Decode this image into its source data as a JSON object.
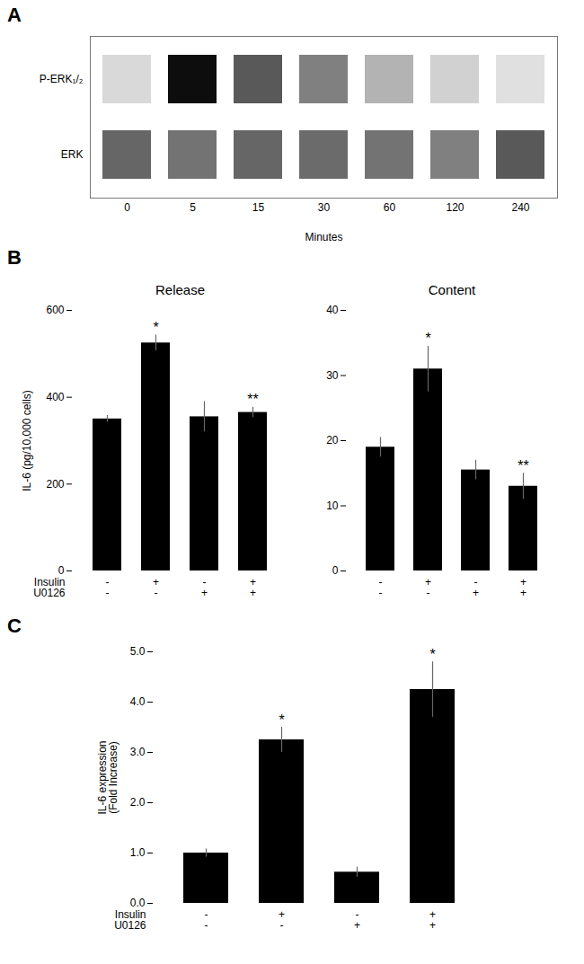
{
  "chart_data": [
    {
      "type": "heatmap",
      "panel_label": "A",
      "categories": [
        "0",
        "5",
        "15",
        "30",
        "60",
        "120",
        "240"
      ],
      "rows": [
        "P-ERK₁/₂",
        "ERK"
      ],
      "cells": [
        [
          0.15,
          0.95,
          0.65,
          0.5,
          0.3,
          0.18,
          0.12
        ],
        [
          0.6,
          0.55,
          0.6,
          0.58,
          0.55,
          0.5,
          0.65
        ]
      ],
      "zlim": [
        0,
        1
      ],
      "xlabel": "Minutes"
    },
    {
      "type": "bar",
      "panel_label": "B",
      "title": "Release",
      "ylabel": "IL-6 (pg/10,000 cells)",
      "categories": [
        null,
        null,
        null,
        null
      ],
      "values": [
        350,
        525,
        355,
        365
      ],
      "errors": [
        8,
        18,
        35,
        12
      ],
      "sig": [
        null,
        "*",
        null,
        "**"
      ],
      "conditions": [
        {
          "name": "Insulin",
          "labels": [
            "-",
            "+",
            "-",
            "+"
          ]
        },
        {
          "name": "U0126",
          "labels": [
            "-",
            "-",
            "+",
            "+"
          ]
        }
      ],
      "color": "#000000",
      "ylim": [
        0,
        600
      ],
      "yticks": [
        0,
        200,
        400,
        600
      ],
      "grid": false
    },
    {
      "type": "bar",
      "title": "Content",
      "categories": [
        null,
        null,
        null,
        null
      ],
      "values": [
        19,
        31,
        15.5,
        13
      ],
      "errors": [
        1.5,
        3.5,
        1.5,
        2.0
      ],
      "sig": [
        null,
        "*",
        null,
        "**"
      ],
      "conditions": [
        {
          "labels": [
            "-",
            "+",
            "-",
            "+"
          ]
        },
        {
          "labels": [
            "-",
            "-",
            "+",
            "+"
          ]
        }
      ],
      "color": "#000000",
      "ylim": [
        0,
        40
      ],
      "yticks": [
        0,
        10,
        20,
        30,
        40
      ],
      "grid": false
    },
    {
      "type": "bar",
      "panel_label": "C",
      "ylabel": "IL-6 expression\n(Fold Increase)",
      "categories": [
        null,
        null,
        null,
        null
      ],
      "values": [
        1.0,
        3.25,
        0.62,
        4.25
      ],
      "errors": [
        0.08,
        0.25,
        0.1,
        0.55
      ],
      "sig": [
        null,
        "*",
        null,
        "*"
      ],
      "conditions": [
        {
          "name": "Insulin",
          "labels": [
            "-",
            "+",
            "-",
            "+"
          ]
        },
        {
          "name": "U0126",
          "labels": [
            "-",
            "-",
            "+",
            "+"
          ]
        }
      ],
      "color": "#000000",
      "ylim": [
        0,
        5
      ],
      "yticks": [
        0,
        1,
        2,
        3,
        4,
        5
      ],
      "grid": false
    }
  ]
}
